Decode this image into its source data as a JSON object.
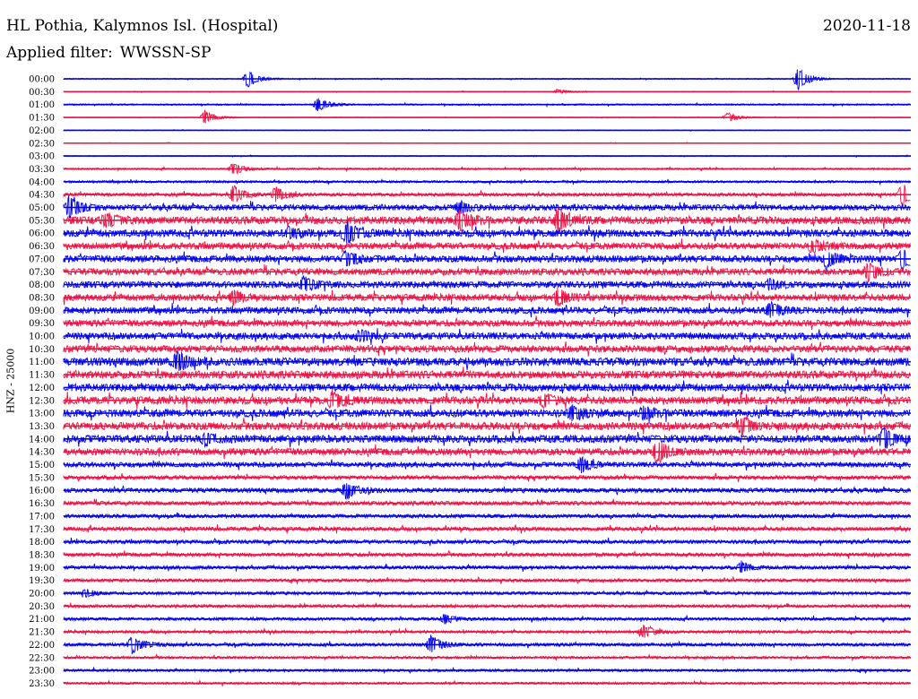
{
  "header": {
    "station": "HL Pothia, Kalymnos Isl. (Hospital)",
    "date": "2020-11-18",
    "filter_label": "Applied filter:",
    "filter_value": "WWSSN-SP"
  },
  "colors": {
    "odd_trace": "#0000ee",
    "even_trace": "#ee1144",
    "text": "#000000"
  },
  "chart_data": {
    "type": "line",
    "ylabel": "HNZ - 25000",
    "row_labels": [
      "00:00",
      "00:30",
      "01:00",
      "01:30",
      "02:00",
      "02:30",
      "03:00",
      "03:30",
      "04:00",
      "04:30",
      "05:00",
      "05:30",
      "06:00",
      "06:30",
      "07:00",
      "07:30",
      "08:00",
      "08:30",
      "09:00",
      "09:30",
      "10:00",
      "10:30",
      "11:00",
      "11:30",
      "12:00",
      "12:30",
      "13:00",
      "13:30",
      "14:00",
      "14:30",
      "15:00",
      "15:30",
      "16:00",
      "16:30",
      "17:00",
      "17:30",
      "18:00",
      "18:30",
      "19:00",
      "19:30",
      "20:00",
      "20:30",
      "21:00",
      "21:30",
      "22:00",
      "22:30",
      "23:00",
      "23:30"
    ],
    "row_interval_minutes": 30,
    "noise_level": [
      0.4,
      0.3,
      0.6,
      0.3,
      0.3,
      0.3,
      0.4,
      0.7,
      0.9,
      1.3,
      2.3,
      3.0,
      2.9,
      2.6,
      2.7,
      2.6,
      2.6,
      2.6,
      2.6,
      2.6,
      2.7,
      2.7,
      3.2,
      3.0,
      3.0,
      3.0,
      3.0,
      3.0,
      3.0,
      2.7,
      2.0,
      1.6,
      1.8,
      1.6,
      1.5,
      1.6,
      1.5,
      1.5,
      1.4,
      1.3,
      1.2,
      1.2,
      1.2,
      1.1,
      1.3,
      1.0,
      1.0,
      0.9
    ],
    "events": [
      {
        "row": 0,
        "minute": 6.5,
        "amplitude": 10
      },
      {
        "row": 0,
        "minute": 26.0,
        "amplitude": 13
      },
      {
        "row": 1,
        "minute": 17.5,
        "amplitude": 3
      },
      {
        "row": 2,
        "minute": 9.0,
        "amplitude": 8
      },
      {
        "row": 3,
        "minute": 5.0,
        "amplitude": 8
      },
      {
        "row": 3,
        "minute": 23.5,
        "amplitude": 6
      },
      {
        "row": 7,
        "minute": 6.0,
        "amplitude": 7
      },
      {
        "row": 9,
        "minute": 6.0,
        "amplitude": 10
      },
      {
        "row": 9,
        "minute": 7.5,
        "amplitude": 9
      },
      {
        "row": 9,
        "minute": 29.7,
        "amplitude": 14
      },
      {
        "row": 10,
        "minute": 0.2,
        "amplitude": 12
      },
      {
        "row": 10,
        "minute": 14.0,
        "amplitude": 6
      },
      {
        "row": 11,
        "minute": 1.5,
        "amplitude": 8
      },
      {
        "row": 11,
        "minute": 14.0,
        "amplitude": 11
      },
      {
        "row": 11,
        "minute": 17.5,
        "amplitude": 13
      },
      {
        "row": 12,
        "minute": 10.0,
        "amplitude": 14
      },
      {
        "row": 12,
        "minute": 8.0,
        "amplitude": 6
      },
      {
        "row": 13,
        "minute": 26.5,
        "amplitude": 7
      },
      {
        "row": 14,
        "minute": 10.0,
        "amplitude": 8
      },
      {
        "row": 14,
        "minute": 27.0,
        "amplitude": 9
      },
      {
        "row": 14,
        "minute": 29.7,
        "amplitude": 12
      },
      {
        "row": 15,
        "minute": 28.5,
        "amplitude": 10
      },
      {
        "row": 16,
        "minute": 8.5,
        "amplitude": 8
      },
      {
        "row": 16,
        "minute": 25.0,
        "amplitude": 6
      },
      {
        "row": 17,
        "minute": 6.0,
        "amplitude": 7
      },
      {
        "row": 17,
        "minute": 17.5,
        "amplitude": 10
      },
      {
        "row": 18,
        "minute": 25.0,
        "amplitude": 9
      },
      {
        "row": 20,
        "minute": 10.5,
        "amplitude": 6
      },
      {
        "row": 22,
        "minute": 4.0,
        "amplitude": 10
      },
      {
        "row": 25,
        "minute": 9.5,
        "amplitude": 9
      },
      {
        "row": 25,
        "minute": 17.0,
        "amplitude": 6
      },
      {
        "row": 26,
        "minute": 18.0,
        "amplitude": 8
      },
      {
        "row": 26,
        "minute": 20.5,
        "amplitude": 7
      },
      {
        "row": 27,
        "minute": 24.0,
        "amplitude": 10
      },
      {
        "row": 28,
        "minute": 5.0,
        "amplitude": 6
      },
      {
        "row": 28,
        "minute": 29.0,
        "amplitude": 12
      },
      {
        "row": 29,
        "minute": 21.0,
        "amplitude": 13
      },
      {
        "row": 30,
        "minute": 18.3,
        "amplitude": 9
      },
      {
        "row": 32,
        "minute": 10.0,
        "amplitude": 10
      },
      {
        "row": 38,
        "minute": 24.0,
        "amplitude": 6
      },
      {
        "row": 40,
        "minute": 0.8,
        "amplitude": 4
      },
      {
        "row": 42,
        "minute": 13.5,
        "amplitude": 5
      },
      {
        "row": 43,
        "minute": 20.5,
        "amplitude": 8
      },
      {
        "row": 44,
        "minute": 2.4,
        "amplitude": 10
      },
      {
        "row": 44,
        "minute": 13.0,
        "amplitude": 11
      }
    ]
  }
}
